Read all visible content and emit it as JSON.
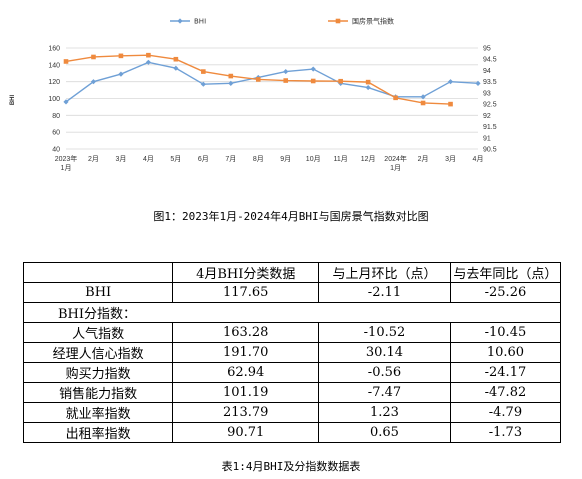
{
  "chart_data": {
    "type": "line",
    "categories": [
      "2023年\n1月",
      "2月",
      "3月",
      "4月",
      "5月",
      "6月",
      "7月",
      "8月",
      "9月",
      "10月",
      "11月",
      "12月",
      "2024年\n1月",
      "2月",
      "3月",
      "4月"
    ],
    "ylabel": "BHI",
    "ylim": [
      40,
      160
    ],
    "yticks": [
      40,
      60,
      80,
      100,
      120,
      140,
      160
    ],
    "y2lim": [
      90.5,
      95
    ],
    "y2ticks": [
      "90.5",
      "91",
      "91.5",
      "92",
      "92.5",
      "93",
      "93.5",
      "94",
      "94.5",
      "95"
    ],
    "grid": true,
    "legend": "top",
    "series": [
      {
        "name": "BHI",
        "axis": "left",
        "color": "#6fa0d6",
        "marker": "diamond",
        "values": [
          96,
          120,
          129,
          143,
          136,
          117,
          118,
          125,
          132,
          135,
          118,
          113,
          102,
          102,
          120,
          118
        ]
      },
      {
        "name": "国房景气指数",
        "axis": "right",
        "color": "#ef8a3e",
        "marker": "square",
        "values": [
          94.4,
          94.6,
          94.65,
          94.68,
          94.5,
          93.95,
          93.75,
          93.6,
          93.55,
          93.53,
          93.52,
          93.48,
          92.78,
          92.55,
          92.5,
          null
        ]
      }
    ]
  },
  "figure_caption": "图1：2023年1月-2024年4月BHI与国房景气指数对比图",
  "table": {
    "header": [
      "",
      "4月BHI分类数据",
      "与上月环比（点）",
      "与去年同比（点）"
    ],
    "bhi_row": [
      "BHI",
      "117.65",
      "-2.11",
      "-25.26"
    ],
    "sub_title": "BHI分指数：",
    "rows": [
      [
        "人气指数",
        "163.28",
        "-10.52",
        "-10.45"
      ],
      [
        "经理人信心指数",
        "191.70",
        "30.14",
        "10.60"
      ],
      [
        "购买力指数",
        "62.94",
        "-0.56",
        "-24.17"
      ],
      [
        "销售能力指数",
        "101.19",
        "-7.47",
        "-47.82"
      ],
      [
        "就业率指数",
        "213.79",
        "1.23",
        "-4.79"
      ],
      [
        "出租率指数",
        "90.71",
        "0.65",
        "-1.73"
      ]
    ]
  },
  "table_caption": "表1:4月BHI及分指数数据表"
}
